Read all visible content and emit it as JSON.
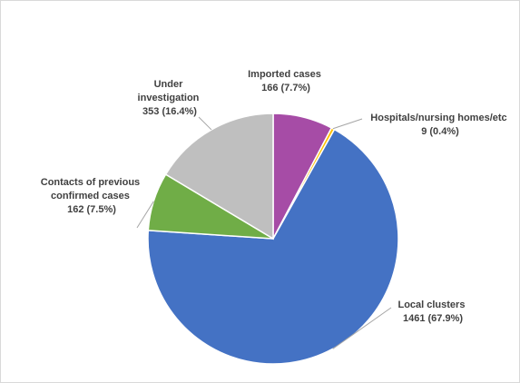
{
  "chart_data": {
    "type": "pie",
    "categories": [
      "Imported cases",
      "Hospitals/nursing homes/etc",
      "Local clusters",
      "Contacts of previous confirmed cases",
      "Under investigation"
    ],
    "values": [
      166,
      9,
      1461,
      162,
      353
    ],
    "percent_labels": [
      "7.7%",
      "0.4%",
      "67.9%",
      "7.5%",
      "16.4%"
    ],
    "colors": [
      "#a64ca6",
      "#ffc000",
      "#4472c4",
      "#70ad47",
      "#bfbfbf"
    ],
    "legend": "none",
    "data_labels": [
      {
        "lines": [
          "Imported cases",
          "166 (7.7%)"
        ]
      },
      {
        "lines": [
          "Hospitals/nursing  homes/etc",
          "9 (0.4%)"
        ]
      },
      {
        "lines": [
          "Local clusters",
          "1461 (67.9%)"
        ]
      },
      {
        "lines": [
          "Contacts of previous",
          "confirmed cases",
          "162 (7.5%)"
        ]
      },
      {
        "lines": [
          "Under",
          "investigation",
          "353 (16.4%)"
        ]
      }
    ]
  }
}
